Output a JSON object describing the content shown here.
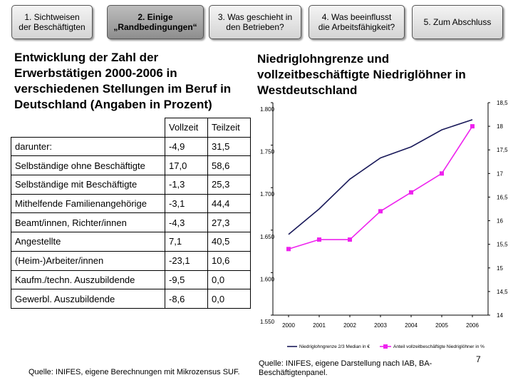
{
  "nav": {
    "tabs": [
      {
        "label": "1. Sichtweisen\nder Beschäftigten",
        "active": false
      },
      {
        "label": "2. Einige\n„Randbedingungen“",
        "active": true
      },
      {
        "label": "3. Was geschieht in\nden Betrieben?",
        "active": false
      },
      {
        "label": "4. Was beeinflusst\ndie Arbeitsfähigkeit?",
        "active": false
      },
      {
        "label": "5. Zum Abschluss",
        "active": false
      }
    ]
  },
  "left": {
    "heading": "Entwicklung der Zahl der\nErwerbstätigen 2000-2006 in\nverschiedenen Stellungen im Beruf in\nDeutschland (Angaben in Prozent)",
    "table": {
      "headers": [
        "",
        "Vollzeit",
        "Teilzeit"
      ],
      "rows": [
        [
          "darunter:",
          "-4,9",
          "31,5"
        ],
        [
          "Selbständige ohne Beschäftigte",
          "17,0",
          "58,6"
        ],
        [
          "Selbständige mit Beschäftigte",
          "-1,3",
          "25,3"
        ],
        [
          "Mithelfende Familienangehörige",
          "-3,1",
          "44,4"
        ],
        [
          "Beamt/innen, Richter/innen",
          "-4,3",
          "27,3"
        ],
        [
          "Angestellte",
          "7,1",
          "40,5"
        ],
        [
          "(Heim-)Arbeiter/innen",
          "-23,1",
          "10,6"
        ],
        [
          "Kaufm./techn. Auszubildende",
          "-9,5",
          "0,0"
        ],
        [
          "Gewerbl. Auszubildende",
          "-8,6",
          "0,0"
        ]
      ]
    },
    "source": "Quelle: INIFES, eigene Berechnungen mit Mikrozensus SUF."
  },
  "right": {
    "heading": "Niedriglohngrenze und\nvollzeitbeschäftigte Niedriglöhner in\nWestdeutschland",
    "source": "Quelle: INIFES, eigene Darstellung nach IAB, BA-Beschäftigtenpanel.",
    "page_number": "7"
  },
  "chart_data": {
    "type": "line",
    "x": [
      2000,
      2001,
      2002,
      2003,
      2004,
      2005,
      2006
    ],
    "y_left": {
      "range": [
        1550,
        1800
      ],
      "ticks": [
        1550,
        1600,
        1650,
        1700,
        1750,
        1800
      ],
      "tick_labels": [
        "1.550",
        "1.600",
        "1.650",
        "1.700",
        "1.750",
        "1.800"
      ]
    },
    "y_right": {
      "range": [
        14,
        18.5
      ],
      "ticks": [
        14,
        14.5,
        15,
        15.5,
        16,
        16.5,
        17,
        17.5,
        18,
        18.5
      ],
      "tick_labels": [
        "14",
        "14,5",
        "15",
        "15,5",
        "16",
        "16,5",
        "17",
        "17,5",
        "18",
        "18,5"
      ]
    },
    "series": [
      {
        "name": "Niedriglohngrenze 2/3 Median in €",
        "axis": "left",
        "color": "#1a1a5a",
        "values": [
          1645,
          1675,
          1710,
          1735,
          1748,
          1768,
          1780
        ]
      },
      {
        "name": "Anteil vollzeitbeschäftigte Niedriglöhner in %",
        "axis": "right",
        "color": "#ee22ee",
        "marker": "square",
        "values": [
          15.4,
          15.6,
          15.6,
          16.2,
          16.6,
          17.0,
          18.0
        ]
      }
    ],
    "legend": "bottom",
    "grid": false
  }
}
